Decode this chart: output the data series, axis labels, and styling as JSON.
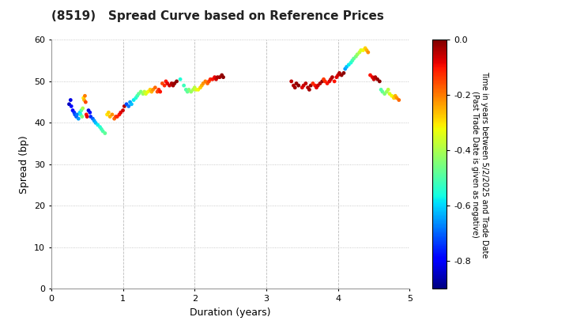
{
  "title": "(8519)   Spread Curve based on Reference Prices",
  "xlabel": "Duration (years)",
  "ylabel": "Spread (bp)",
  "colorbar_label": "Time in years between 5/2/2025 and Trade Date\n(Past Trade Date is given as negative)",
  "xlim": [
    0,
    5
  ],
  "ylim": [
    0,
    60
  ],
  "xticks": [
    0,
    1,
    2,
    3,
    4,
    5
  ],
  "yticks": [
    0,
    10,
    20,
    30,
    40,
    50,
    60
  ],
  "colorbar_ticks": [
    0.0,
    -0.2,
    -0.4,
    -0.6,
    -0.8
  ],
  "colorbar_ticklabels": [
    "0.0",
    "-0.2",
    "-0.4",
    "-0.6",
    "-0.8"
  ],
  "vmin": -0.9,
  "vmax": 0.0,
  "background": "#ffffff",
  "grid_color_h": "#bbbbbb",
  "grid_color_v": "#bbbbbb",
  "title_fontsize": 11,
  "axis_fontsize": 9,
  "tick_fontsize": 8,
  "cbar_tick_fontsize": 8,
  "cbar_label_fontsize": 7,
  "marker_size": 12,
  "points": [
    [
      0.25,
      44.5,
      -0.85
    ],
    [
      0.27,
      45.5,
      -0.82
    ],
    [
      0.28,
      44.0,
      -0.78
    ],
    [
      0.3,
      43.0,
      -0.8
    ],
    [
      0.32,
      42.5,
      -0.75
    ],
    [
      0.33,
      42.0,
      -0.72
    ],
    [
      0.35,
      41.5,
      -0.7
    ],
    [
      0.36,
      42.0,
      -0.68
    ],
    [
      0.38,
      41.0,
      -0.65
    ],
    [
      0.4,
      42.5,
      -0.6
    ],
    [
      0.41,
      42.0,
      -0.55
    ],
    [
      0.42,
      43.0,
      -0.5
    ],
    [
      0.43,
      41.5,
      -0.45
    ],
    [
      0.44,
      43.5,
      -0.4
    ],
    [
      0.45,
      46.0,
      -0.3
    ],
    [
      0.46,
      45.5,
      -0.25
    ],
    [
      0.47,
      46.5,
      -0.2
    ],
    [
      0.48,
      45.0,
      -0.15
    ],
    [
      0.49,
      42.0,
      -0.1
    ],
    [
      0.5,
      41.5,
      -0.08
    ],
    [
      0.52,
      43.0,
      -0.82
    ],
    [
      0.54,
      42.5,
      -0.78
    ],
    [
      0.55,
      41.5,
      -0.75
    ],
    [
      0.58,
      41.0,
      -0.7
    ],
    [
      0.6,
      40.5,
      -0.65
    ],
    [
      0.62,
      40.0,
      -0.62
    ],
    [
      0.65,
      39.5,
      -0.58
    ],
    [
      0.68,
      39.0,
      -0.55
    ],
    [
      0.7,
      38.5,
      -0.52
    ],
    [
      0.72,
      38.0,
      -0.5
    ],
    [
      0.75,
      37.5,
      -0.48
    ],
    [
      0.78,
      42.0,
      -0.3
    ],
    [
      0.8,
      42.5,
      -0.28
    ],
    [
      0.82,
      41.5,
      -0.25
    ],
    [
      0.85,
      42.0,
      -0.22
    ],
    [
      0.88,
      41.0,
      -0.18
    ],
    [
      0.9,
      41.5,
      -0.15
    ],
    [
      0.92,
      41.5,
      -0.12
    ],
    [
      0.95,
      42.0,
      -0.1
    ],
    [
      0.97,
      42.5,
      -0.08
    ],
    [
      1.0,
      43.0,
      -0.06
    ],
    [
      1.02,
      44.0,
      -0.04
    ],
    [
      1.05,
      44.5,
      -0.72
    ],
    [
      1.08,
      44.0,
      -0.68
    ],
    [
      1.1,
      45.0,
      -0.65
    ],
    [
      1.12,
      44.5,
      -0.62
    ],
    [
      1.15,
      45.5,
      -0.58
    ],
    [
      1.18,
      46.0,
      -0.55
    ],
    [
      1.2,
      46.5,
      -0.52
    ],
    [
      1.22,
      47.0,
      -0.48
    ],
    [
      1.25,
      47.5,
      -0.45
    ],
    [
      1.28,
      47.0,
      -0.42
    ],
    [
      1.3,
      47.5,
      -0.38
    ],
    [
      1.32,
      47.0,
      -0.35
    ],
    [
      1.35,
      47.5,
      -0.32
    ],
    [
      1.38,
      48.0,
      -0.28
    ],
    [
      1.4,
      47.5,
      -0.25
    ],
    [
      1.42,
      48.0,
      -0.22
    ],
    [
      1.45,
      48.5,
      -0.18
    ],
    [
      1.48,
      47.5,
      -0.15
    ],
    [
      1.5,
      48.0,
      -0.12
    ],
    [
      1.52,
      47.5,
      -0.1
    ],
    [
      1.55,
      49.5,
      -0.15
    ],
    [
      1.58,
      49.0,
      -0.12
    ],
    [
      1.6,
      50.0,
      -0.1
    ],
    [
      1.62,
      49.5,
      -0.08
    ],
    [
      1.65,
      49.0,
      -0.06
    ],
    [
      1.68,
      49.5,
      -0.04
    ],
    [
      1.7,
      49.0,
      -0.03
    ],
    [
      1.72,
      49.5,
      -0.02
    ],
    [
      1.75,
      50.0,
      -0.01
    ],
    [
      1.8,
      50.5,
      -0.55
    ],
    [
      1.85,
      49.0,
      -0.52
    ],
    [
      1.88,
      48.0,
      -0.5
    ],
    [
      1.9,
      47.5,
      -0.48
    ],
    [
      1.92,
      48.0,
      -0.45
    ],
    [
      1.95,
      47.5,
      -0.42
    ],
    [
      1.98,
      48.0,
      -0.4
    ],
    [
      2.0,
      48.5,
      -0.38
    ],
    [
      2.02,
      48.0,
      -0.35
    ],
    [
      2.05,
      48.0,
      -0.32
    ],
    [
      2.08,
      48.5,
      -0.28
    ],
    [
      2.1,
      49.0,
      -0.25
    ],
    [
      2.12,
      49.5,
      -0.22
    ],
    [
      2.15,
      50.0,
      -0.2
    ],
    [
      2.18,
      49.5,
      -0.18
    ],
    [
      2.2,
      50.0,
      -0.15
    ],
    [
      2.22,
      50.5,
      -0.12
    ],
    [
      2.25,
      50.5,
      -0.1
    ],
    [
      2.28,
      51.0,
      -0.08
    ],
    [
      2.3,
      50.5,
      -0.06
    ],
    [
      2.32,
      51.0,
      -0.04
    ],
    [
      2.35,
      51.0,
      -0.03
    ],
    [
      2.38,
      51.5,
      -0.02
    ],
    [
      2.4,
      51.0,
      -0.01
    ],
    [
      3.35,
      50.0,
      -0.05
    ],
    [
      3.38,
      49.0,
      -0.04
    ],
    [
      3.4,
      48.5,
      -0.03
    ],
    [
      3.42,
      49.5,
      -0.02
    ],
    [
      3.45,
      49.0,
      -0.01
    ],
    [
      3.5,
      48.5,
      -0.08
    ],
    [
      3.52,
      49.0,
      -0.06
    ],
    [
      3.55,
      49.5,
      -0.05
    ],
    [
      3.58,
      48.5,
      -0.04
    ],
    [
      3.6,
      48.0,
      -0.03
    ],
    [
      3.62,
      49.0,
      -0.02
    ],
    [
      3.65,
      49.5,
      -0.12
    ],
    [
      3.68,
      49.0,
      -0.1
    ],
    [
      3.7,
      48.5,
      -0.08
    ],
    [
      3.72,
      49.0,
      -0.06
    ],
    [
      3.75,
      49.5,
      -0.04
    ],
    [
      3.78,
      50.0,
      -0.02
    ],
    [
      3.8,
      50.5,
      -0.14
    ],
    [
      3.82,
      50.0,
      -0.12
    ],
    [
      3.85,
      49.5,
      -0.1
    ],
    [
      3.88,
      50.0,
      -0.08
    ],
    [
      3.9,
      50.5,
      -0.06
    ],
    [
      3.92,
      51.0,
      -0.04
    ],
    [
      3.95,
      50.0,
      -0.1
    ],
    [
      3.98,
      51.0,
      -0.08
    ],
    [
      4.0,
      51.5,
      -0.06
    ],
    [
      4.02,
      52.0,
      -0.04
    ],
    [
      4.05,
      51.5,
      -0.02
    ],
    [
      4.08,
      52.0,
      -0.01
    ],
    [
      4.1,
      53.0,
      -0.65
    ],
    [
      4.12,
      53.5,
      -0.62
    ],
    [
      4.15,
      54.0,
      -0.58
    ],
    [
      4.18,
      54.5,
      -0.55
    ],
    [
      4.2,
      55.0,
      -0.52
    ],
    [
      4.22,
      55.5,
      -0.48
    ],
    [
      4.25,
      56.0,
      -0.45
    ],
    [
      4.27,
      56.5,
      -0.42
    ],
    [
      4.3,
      57.0,
      -0.38
    ],
    [
      4.32,
      57.5,
      -0.35
    ],
    [
      4.35,
      57.5,
      -0.32
    ],
    [
      4.38,
      58.0,
      -0.28
    ],
    [
      4.4,
      57.5,
      -0.25
    ],
    [
      4.42,
      57.0,
      -0.22
    ],
    [
      4.45,
      51.5,
      -0.1
    ],
    [
      4.48,
      51.0,
      -0.08
    ],
    [
      4.5,
      50.5,
      -0.06
    ],
    [
      4.52,
      51.0,
      -0.04
    ],
    [
      4.55,
      50.5,
      -0.02
    ],
    [
      4.58,
      50.0,
      -0.01
    ],
    [
      4.6,
      48.0,
      -0.5
    ],
    [
      4.62,
      47.5,
      -0.48
    ],
    [
      4.65,
      47.0,
      -0.45
    ],
    [
      4.68,
      47.5,
      -0.42
    ],
    [
      4.7,
      48.0,
      -0.38
    ],
    [
      4.72,
      47.0,
      -0.35
    ],
    [
      4.75,
      46.5,
      -0.32
    ],
    [
      4.78,
      46.0,
      -0.28
    ],
    [
      4.8,
      46.5,
      -0.25
    ],
    [
      4.82,
      46.0,
      -0.22
    ],
    [
      4.85,
      45.5,
      -0.18
    ]
  ]
}
